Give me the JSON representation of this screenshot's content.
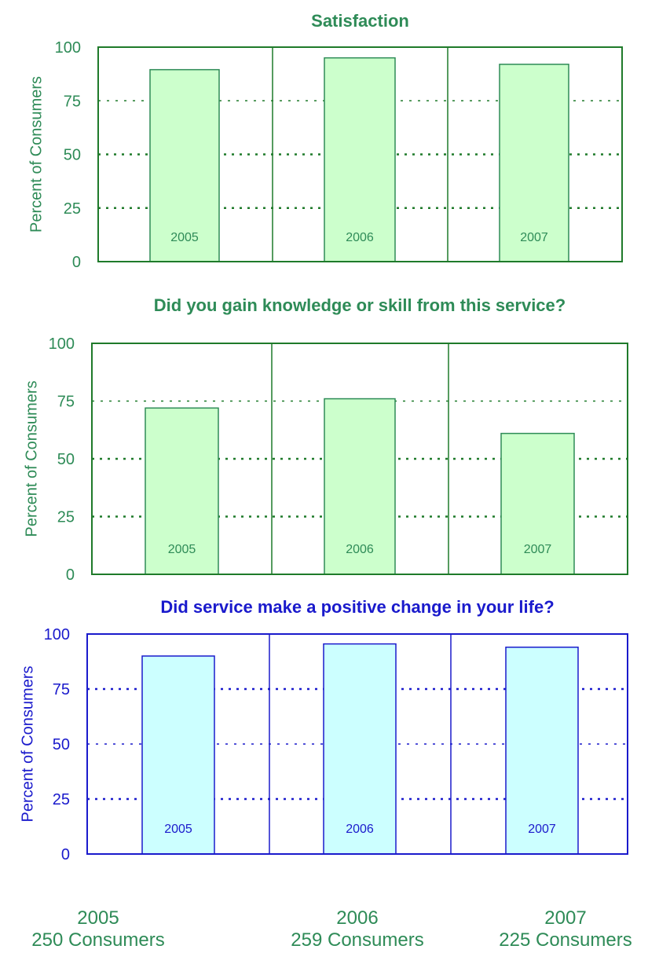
{
  "chart_data": [
    {
      "type": "bar",
      "title": "Satisfaction",
      "ylabel": "Percent of Consumers",
      "categories": [
        "2005",
        "2006",
        "2007"
      ],
      "values": [
        89.5,
        95,
        92
      ],
      "ylim": [
        0,
        100
      ],
      "yticks": [
        "0",
        "25",
        "50",
        "75",
        "100"
      ],
      "grid": "dotted horizontal",
      "colors": {
        "text": "#2e8b57",
        "frame": "#1f7a2a",
        "bar_fill": "#ccffcc",
        "bar_stroke": "#2e8b57",
        "grid": "#1f7a2a"
      }
    },
    {
      "type": "bar",
      "title": "Did you gain knowledge or skill from this service?",
      "ylabel": "Percent of Consumers",
      "categories": [
        "2005",
        "2006",
        "2007"
      ],
      "values": [
        72,
        76,
        61
      ],
      "ylim": [
        0,
        100
      ],
      "yticks": [
        "0",
        "25",
        "50",
        "75",
        "100"
      ],
      "grid": "dotted horizontal",
      "colors": {
        "text": "#2e8b57",
        "frame": "#1f7a2a",
        "bar_fill": "#ccffcc",
        "bar_stroke": "#2e8b57",
        "grid": "#1f7a2a"
      }
    },
    {
      "type": "bar",
      "title": "Did service make a positive change in your life?",
      "ylabel": "Percent of Consumers",
      "categories": [
        "2005",
        "2006",
        "2007"
      ],
      "values": [
        90,
        95.5,
        94
      ],
      "ylim": [
        0,
        100
      ],
      "yticks": [
        "0",
        "25",
        "50",
        "75",
        "100"
      ],
      "grid": "dotted horizontal",
      "colors": {
        "text": "#1a1acc",
        "frame": "#1a1acc",
        "bar_fill": "#ccffff",
        "bar_stroke": "#1a1acc",
        "grid": "#1a1acc"
      }
    }
  ],
  "footer": [
    {
      "year": "2005",
      "count": "250 Consumers"
    },
    {
      "year": "2006",
      "count": "259 Consumers"
    },
    {
      "year": "2007",
      "count": "225 Consumers"
    }
  ]
}
